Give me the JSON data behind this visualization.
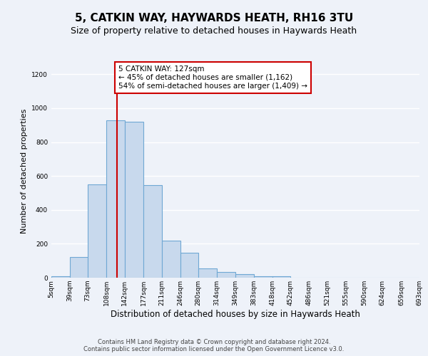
{
  "title1": "5, CATKIN WAY, HAYWARDS HEATH, RH16 3TU",
  "title2": "Size of property relative to detached houses in Haywards Heath",
  "xlabel": "Distribution of detached houses by size in Haywards Heath",
  "ylabel": "Number of detached properties",
  "bin_edges": [
    5,
    39,
    73,
    108,
    142,
    177,
    211,
    246,
    280,
    314,
    349,
    383,
    418,
    452,
    486,
    521,
    555,
    590,
    624,
    659,
    693
  ],
  "bar_heights": [
    10,
    120,
    550,
    930,
    920,
    545,
    220,
    145,
    55,
    32,
    22,
    10,
    10,
    0,
    0,
    0,
    0,
    0,
    0,
    0
  ],
  "bar_color": "#c8d9ed",
  "bar_edge_color": "#6fa8d4",
  "bar_edge_width": 0.8,
  "red_line_x": 127,
  "red_line_color": "#cc0000",
  "annotation_text": "5 CATKIN WAY: 127sqm\n← 45% of detached houses are smaller (1,162)\n54% of semi-detached houses are larger (1,409) →",
  "annotation_box_color": "#ffffff",
  "annotation_box_edge_color": "#cc0000",
  "ylim": [
    0,
    1260
  ],
  "yticks": [
    0,
    200,
    400,
    600,
    800,
    1000,
    1200
  ],
  "tick_labels": [
    "5sqm",
    "39sqm",
    "73sqm",
    "108sqm",
    "142sqm",
    "177sqm",
    "211sqm",
    "246sqm",
    "280sqm",
    "314sqm",
    "349sqm",
    "383sqm",
    "418sqm",
    "452sqm",
    "486sqm",
    "521sqm",
    "555sqm",
    "590sqm",
    "624sqm",
    "659sqm",
    "693sqm"
  ],
  "footer_text": "Contains HM Land Registry data © Crown copyright and database right 2024.\nContains public sector information licensed under the Open Government Licence v3.0.",
  "bg_color": "#eef2f9",
  "plot_bg_color": "#eef2f9",
  "grid_color": "#ffffff",
  "title1_fontsize": 11,
  "title2_fontsize": 9,
  "xlabel_fontsize": 8.5,
  "ylabel_fontsize": 8,
  "tick_fontsize": 6.5
}
